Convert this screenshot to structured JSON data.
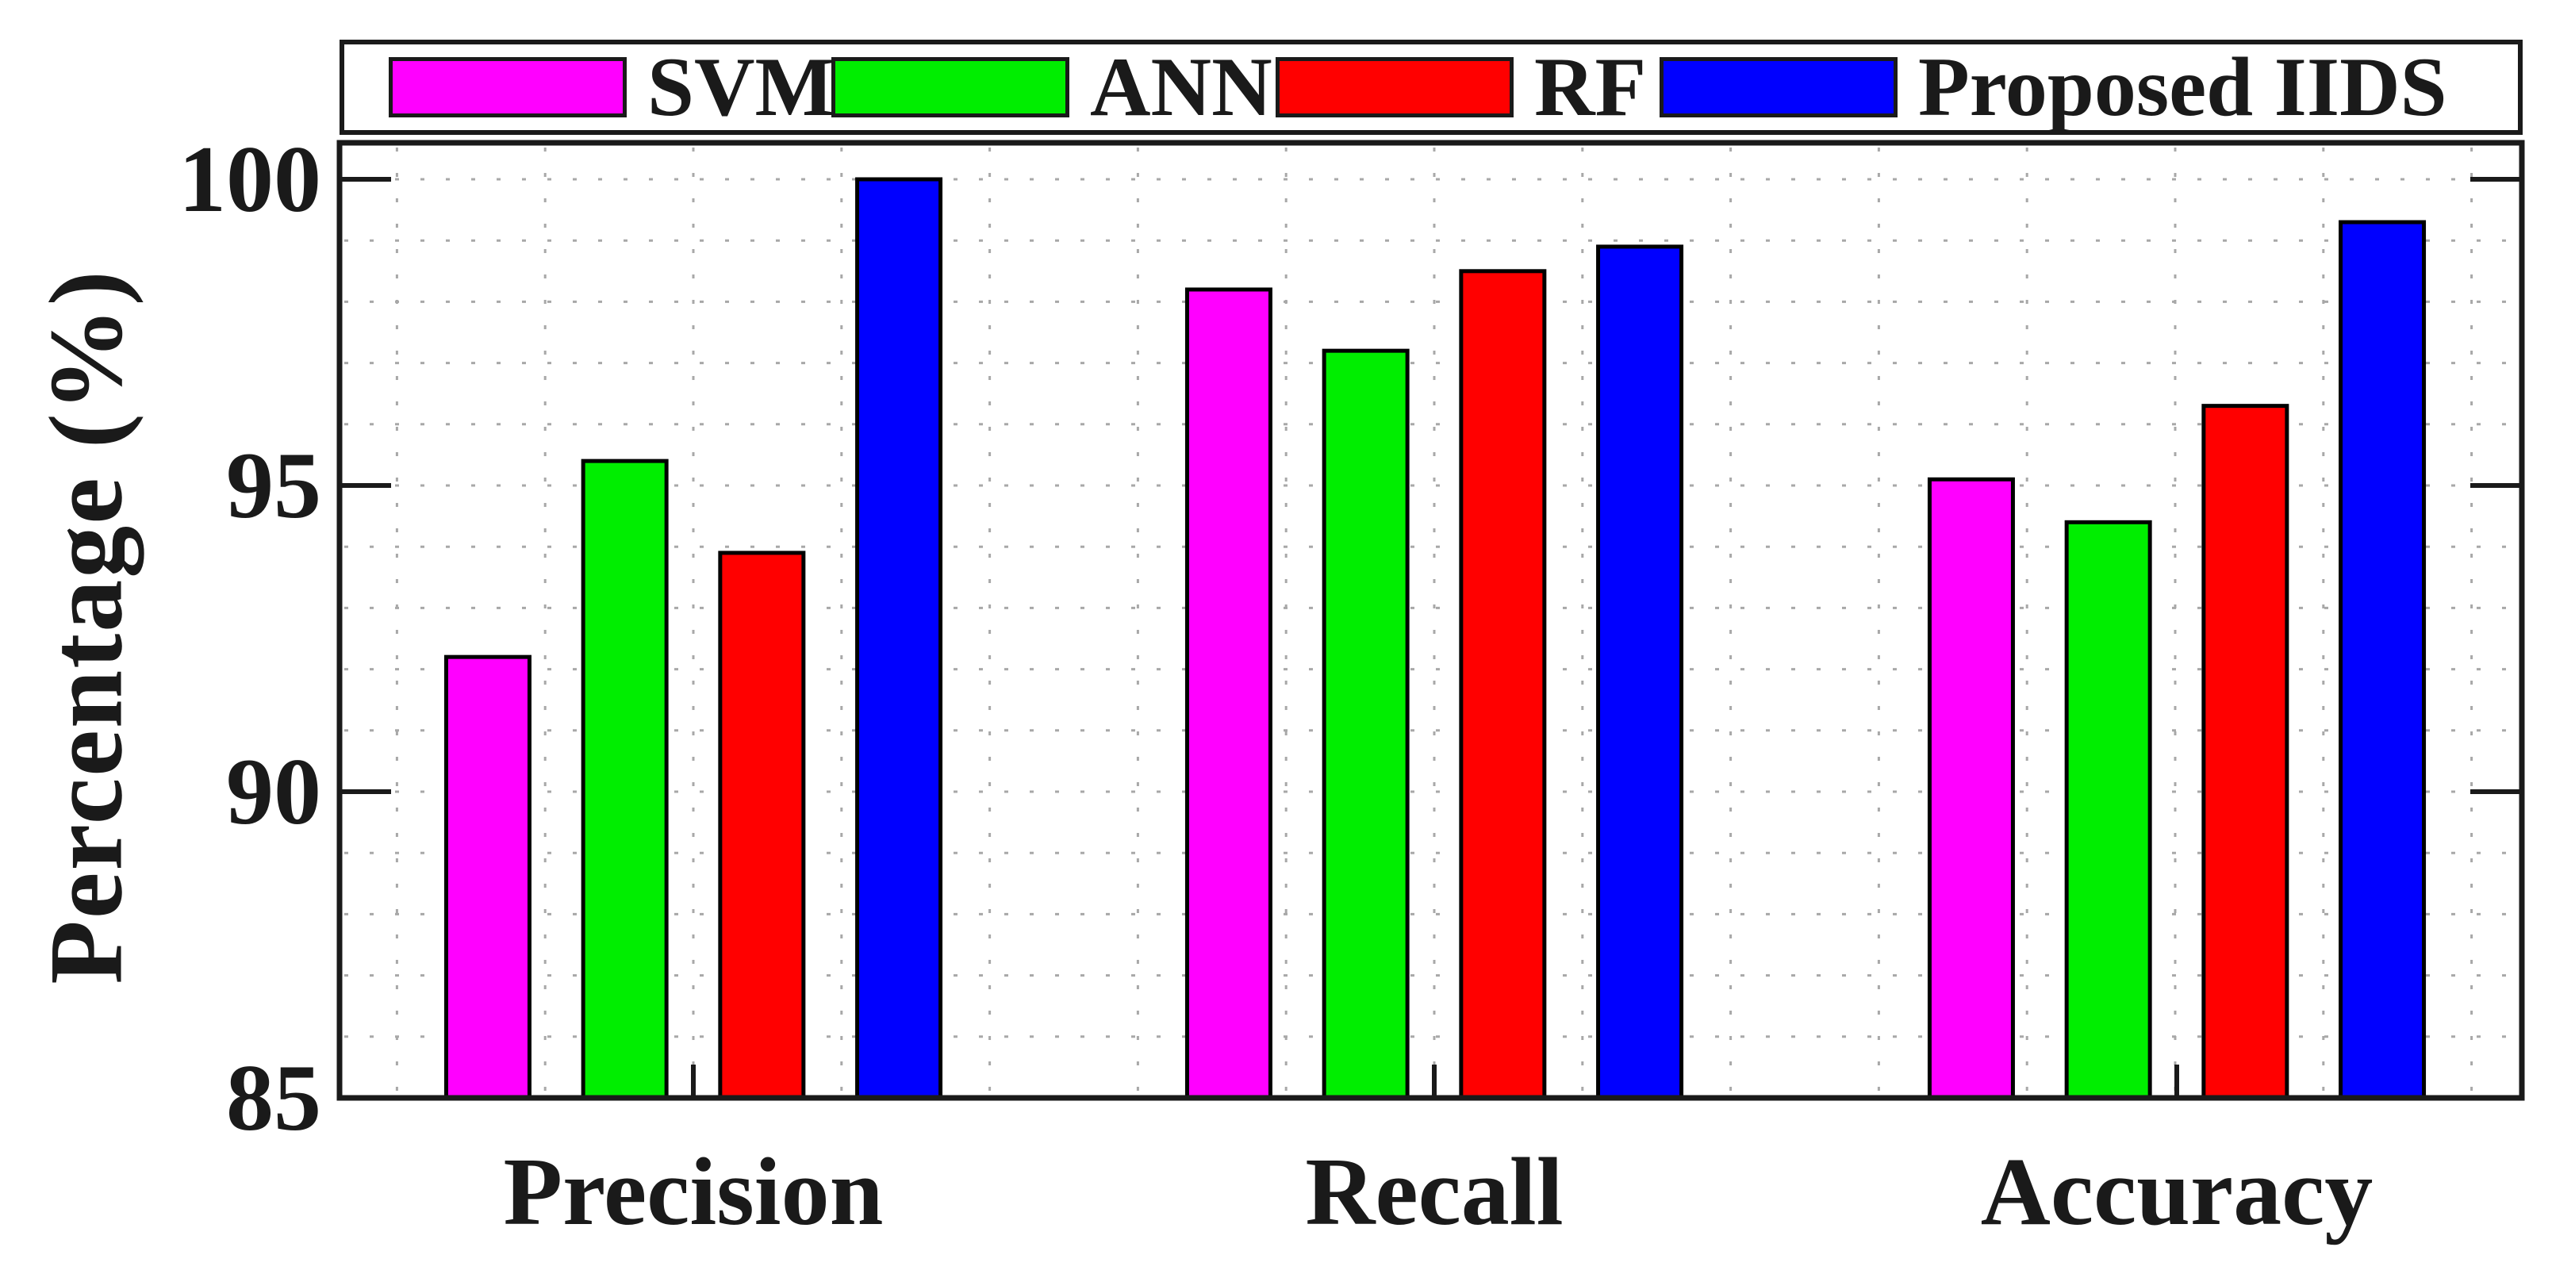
{
  "figure": {
    "background": "#ffffff",
    "axis_color": "#1a1a1a",
    "grid_color": "#a8a8a8"
  },
  "chart_data": {
    "type": "bar",
    "title": "",
    "xlabel": "",
    "ylabel": "Percentage (%)",
    "categories": [
      "Precision",
      "Recall",
      "Accuracy"
    ],
    "series": [
      {
        "name": "SVM",
        "color": "#ff00ff",
        "values": [
          92.2,
          98.2,
          95.1
        ]
      },
      {
        "name": "ANN",
        "color": "#00ee00",
        "values": [
          95.4,
          97.2,
          94.4
        ]
      },
      {
        "name": "RF",
        "color": "#ff0000",
        "values": [
          93.9,
          98.5,
          96.3
        ]
      },
      {
        "name": "Proposed IIDS",
        "color": "#0000ff",
        "values": [
          100.0,
          98.9,
          99.3
        ]
      }
    ],
    "ylim": [
      85,
      100.6
    ],
    "yticks": [
      85,
      90,
      95,
      100
    ],
    "grid": "dotted minor grid, horizontal every 1 unit, vertical minor lines",
    "legend_position": "top, horizontal row, full plot width",
    "bar_outline": "#000000"
  }
}
